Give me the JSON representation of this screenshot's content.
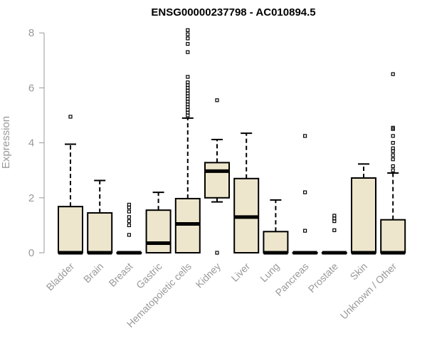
{
  "chart_data": {
    "type": "box",
    "title": "ENSG00000237798 - AC010894.5",
    "ylabel": "Expression",
    "xlabel": "",
    "ylim": [
      0,
      8
    ],
    "yticks": [
      0,
      2,
      4,
      6,
      8
    ],
    "box_fill": "#ede6cc",
    "axis_color": "#999999",
    "categories": [
      "Bladder",
      "Brain",
      "Breast",
      "Gastric",
      "Hematopoietic cells",
      "Kidney",
      "Liver",
      "Lung",
      "Pancreas",
      "Prostate",
      "Skin",
      "Unknown / Other"
    ],
    "boxes": [
      {
        "q1": 0,
        "median": 0,
        "q3": 1.68,
        "whisker_low": 0,
        "whisker_high": 3.95,
        "outliers": [
          4.95
        ]
      },
      {
        "q1": 0,
        "median": 0,
        "q3": 1.45,
        "whisker_low": 0,
        "whisker_high": 2.63,
        "outliers": []
      },
      {
        "q1": 0,
        "median": 0,
        "q3": 0,
        "whisker_low": 0,
        "whisker_high": 0,
        "outliers": [
          0.65,
          1.0,
          1.15,
          1.3,
          1.5,
          1.65,
          1.75
        ]
      },
      {
        "q1": 0,
        "median": 0.35,
        "q3": 1.55,
        "whisker_low": 0,
        "whisker_high": 2.2,
        "outliers": []
      },
      {
        "q1": 0,
        "median": 1.05,
        "q3": 1.97,
        "whisker_low": 0,
        "whisker_high": 4.9,
        "outliers": [
          5.0,
          5.1,
          5.2,
          5.3,
          5.4,
          5.5,
          5.6,
          5.7,
          5.8,
          5.9,
          6.0,
          6.1,
          6.2,
          6.4,
          7.3,
          7.6,
          7.8,
          7.95,
          8.1
        ]
      },
      {
        "q1": 2.0,
        "median": 2.97,
        "q3": 3.28,
        "whisker_low": 1.85,
        "whisker_high": 4.12,
        "outliers": [
          0,
          5.55
        ]
      },
      {
        "q1": 0,
        "median": 1.3,
        "q3": 2.7,
        "whisker_low": 0,
        "whisker_high": 4.35,
        "outliers": []
      },
      {
        "q1": 0,
        "median": 0,
        "q3": 0.77,
        "whisker_low": 0,
        "whisker_high": 1.92,
        "outliers": []
      },
      {
        "q1": 0,
        "median": 0,
        "q3": 0,
        "whisker_low": 0,
        "whisker_high": 0,
        "outliers": [
          0.8,
          2.2,
          4.25
        ]
      },
      {
        "q1": 0,
        "median": 0,
        "q3": 0,
        "whisker_low": 0,
        "whisker_high": 0,
        "outliers": [
          0.82,
          1.15,
          1.25,
          1.35
        ]
      },
      {
        "q1": 0,
        "median": 0,
        "q3": 2.72,
        "whisker_low": 0,
        "whisker_high": 3.23,
        "outliers": []
      },
      {
        "q1": 0,
        "median": 0,
        "q3": 1.2,
        "whisker_low": 0,
        "whisker_high": 2.9,
        "outliers": [
          3.0,
          3.15,
          3.4,
          3.55,
          3.7,
          3.8,
          4.0,
          4.25,
          4.5,
          4.55,
          6.5
        ]
      }
    ]
  }
}
